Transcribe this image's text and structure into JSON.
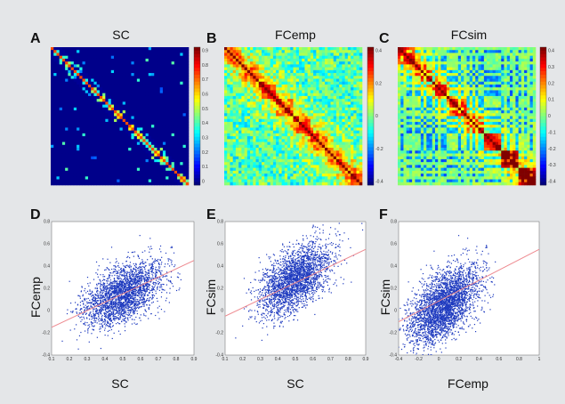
{
  "chart_data": [
    {
      "type": "heatmap",
      "panel": "A",
      "title": "SC",
      "colorbar": {
        "ticks": [
          "0.9",
          "0.8",
          "0.7",
          "0.6",
          "0.5",
          "0.4",
          "0.3",
          "0.2",
          "0.1",
          "0"
        ],
        "range": [
          0,
          0.9
        ]
      }
    },
    {
      "type": "heatmap",
      "panel": "B",
      "title": "FCemp",
      "colorbar": {
        "ticks": [
          "0.4",
          "0.2",
          "0",
          "-0.2",
          "-0.4"
        ],
        "range": [
          -0.5,
          0.5
        ]
      }
    },
    {
      "type": "heatmap",
      "panel": "C",
      "title": "FCsim",
      "colorbar": {
        "ticks": [
          "0.4",
          "0.3",
          "0.2",
          "0.1",
          "0",
          "-0.1",
          "-0.2",
          "-0.3",
          "-0.4"
        ],
        "range": [
          -0.45,
          0.45
        ]
      }
    },
    {
      "type": "scatter",
      "panel": "D",
      "xlabel": "SC",
      "ylabel": "FCemp",
      "xlim": [
        0.1,
        0.9
      ],
      "ylim": [
        -0.4,
        0.8
      ],
      "xticks": [
        "0.1",
        "0.2",
        "0.3",
        "0.4",
        "0.5",
        "0.6",
        "0.7",
        "0.8",
        "0.9"
      ],
      "yticks": [
        "-0.4",
        "-0.2",
        "0",
        "0.2",
        "0.4",
        "0.6",
        "0.8"
      ],
      "trend": {
        "x": [
          0.1,
          0.9
        ],
        "y": [
          -0.15,
          0.45
        ]
      },
      "point_cloud": {
        "x_center": 0.5,
        "y_center": 0.15,
        "x_spread": 0.11,
        "y_spread": 0.14,
        "correlation": 0.5,
        "count": 2600
      }
    },
    {
      "type": "scatter",
      "panel": "E",
      "xlabel": "SC",
      "ylabel": "FCsim",
      "xlim": [
        0.1,
        0.9
      ],
      "ylim": [
        -0.4,
        0.8
      ],
      "xticks": [
        "0.1",
        "0.2",
        "0.3",
        "0.4",
        "0.5",
        "0.6",
        "0.7",
        "0.8",
        "0.9"
      ],
      "yticks": [
        "-0.4",
        "-0.2",
        "0",
        "0.2",
        "0.4",
        "0.6",
        "0.8"
      ],
      "trend": {
        "x": [
          0.1,
          0.9
        ],
        "y": [
          -0.05,
          0.55
        ]
      },
      "point_cloud": {
        "x_center": 0.5,
        "y_center": 0.28,
        "x_spread": 0.1,
        "y_spread": 0.16,
        "correlation": 0.55,
        "count": 2600
      }
    },
    {
      "type": "scatter",
      "panel": "F",
      "xlabel": "FCemp",
      "ylabel": "FCsim",
      "xlim": [
        -0.4,
        1
      ],
      "ylim": [
        -0.4,
        0.8
      ],
      "xticks": [
        "-0.4",
        "-0.2",
        "0",
        "0.2",
        "0.4",
        "0.6",
        "0.8",
        "1"
      ],
      "yticks": [
        "-0.4",
        "-0.2",
        "0",
        "0.2",
        "0.4",
        "0.6",
        "0.8"
      ],
      "trend": {
        "x": [
          -0.4,
          1
        ],
        "y": [
          -0.1,
          0.55
        ]
      },
      "point_cloud": {
        "x_center": 0.05,
        "y_center": 0.05,
        "x_spread": 0.17,
        "y_spread": 0.17,
        "correlation": 0.55,
        "count": 3200
      }
    }
  ]
}
